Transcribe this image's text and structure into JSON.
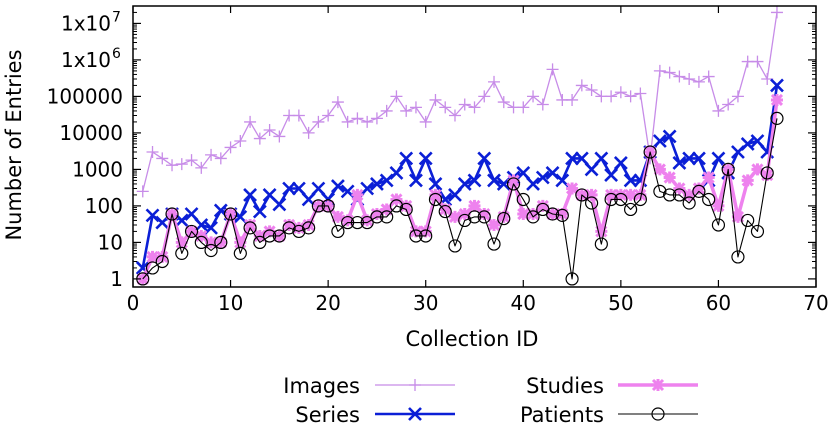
{
  "chart_data": {
    "type": "line",
    "xlabel": "Collection ID",
    "ylabel": "Number of Entries",
    "xlim": [
      0,
      70
    ],
    "ylim": [
      0.6,
      30000000
    ],
    "yscale": "log",
    "grid": false,
    "legend_position": "bottom",
    "xticks": [
      0,
      10,
      20,
      30,
      40,
      50,
      60,
      70
    ],
    "xtick_labels": [
      "0",
      "10",
      "20",
      "30",
      "40",
      "50",
      "60",
      "70"
    ],
    "yticks": [
      1,
      10,
      100,
      1000,
      10000,
      100000,
      1000000,
      10000000
    ],
    "ytick_labels": [
      "1",
      "10",
      "100",
      "1000",
      "10000",
      "100000",
      "1x10",
      "1x10"
    ],
    "ytick_sup": [
      "",
      "",
      "",
      "",
      "",
      "",
      "6",
      "7"
    ],
    "x": [
      1,
      2,
      3,
      4,
      5,
      6,
      7,
      8,
      9,
      10,
      11,
      12,
      13,
      14,
      15,
      16,
      17,
      18,
      19,
      20,
      21,
      22,
      23,
      24,
      25,
      26,
      27,
      28,
      29,
      30,
      31,
      32,
      33,
      34,
      35,
      36,
      37,
      38,
      39,
      40,
      41,
      42,
      43,
      44,
      45,
      46,
      47,
      48,
      49,
      50,
      51,
      52,
      53,
      54,
      55,
      56,
      57,
      58,
      59,
      60,
      61,
      62,
      63,
      64,
      65,
      66
    ],
    "series": [
      {
        "name": "Images",
        "color": "#c78ce8",
        "marker": "plus",
        "values": [
          250,
          3000,
          2000,
          1300,
          1400,
          1800,
          1100,
          2500,
          2000,
          4000,
          6000,
          20000,
          7000,
          12000,
          8000,
          30000,
          30000,
          10000,
          20000,
          30000,
          70000,
          20000,
          25000,
          20000,
          25000,
          40000,
          100000,
          40000,
          50000,
          20000,
          80000,
          50000,
          30000,
          60000,
          50000,
          100000,
          250000,
          70000,
          50000,
          50000,
          100000,
          60000,
          550000,
          80000,
          80000,
          200000,
          150000,
          100000,
          100000,
          130000,
          100000,
          120000,
          2000,
          500000,
          450000,
          350000,
          300000,
          250000,
          350000,
          40000,
          60000,
          100000,
          900000,
          900000,
          300000,
          20000000
        ]
      },
      {
        "name": "Series",
        "color": "#0b1fd6",
        "marker": "cross",
        "values": [
          2,
          55,
          35,
          60,
          40,
          60,
          30,
          25,
          75,
          60,
          50,
          200,
          70,
          200,
          110,
          300,
          300,
          150,
          300,
          150,
          350,
          250,
          150,
          300,
          400,
          500,
          800,
          2000,
          500,
          2000,
          400,
          150,
          200,
          400,
          500,
          2000,
          500,
          400,
          600,
          800,
          400,
          600,
          800,
          500,
          2000,
          2000,
          1000,
          2000,
          700,
          1500,
          500,
          500,
          3000,
          6000,
          8000,
          1500,
          2000,
          2000,
          500,
          2000,
          800,
          3000,
          5000,
          6000,
          3000,
          200000
        ]
      },
      {
        "name": "Studies",
        "color": "#ee82ee",
        "marker": "asterisk",
        "values": [
          1,
          4,
          4,
          60,
          10,
          20,
          15,
          10,
          10,
          60,
          10,
          30,
          15,
          20,
          15,
          30,
          25,
          30,
          100,
          100,
          50,
          40,
          200,
          40,
          60,
          80,
          150,
          100,
          20,
          20,
          200,
          80,
          50,
          60,
          100,
          60,
          30,
          50,
          500,
          60,
          60,
          100,
          60,
          60,
          300,
          200,
          200,
          20,
          200,
          200,
          200,
          200,
          3000,
          1000,
          600,
          300,
          200,
          300,
          600,
          100,
          1000,
          50,
          500,
          1000,
          700,
          80000
        ]
      },
      {
        "name": "Patients",
        "color": "#000000",
        "marker": "circle",
        "values": [
          1,
          2,
          3,
          60,
          5,
          20,
          10,
          6,
          10,
          60,
          5,
          25,
          10,
          15,
          15,
          25,
          20,
          25,
          100,
          100,
          20,
          35,
          35,
          35,
          50,
          50,
          100,
          80,
          15,
          15,
          150,
          70,
          8,
          40,
          50,
          50,
          9,
          45,
          400,
          150,
          50,
          80,
          60,
          55,
          1,
          200,
          120,
          9,
          150,
          150,
          80,
          150,
          3000,
          250,
          200,
          200,
          120,
          250,
          150,
          30,
          1000,
          4,
          40,
          20,
          800,
          25000
        ]
      }
    ]
  }
}
